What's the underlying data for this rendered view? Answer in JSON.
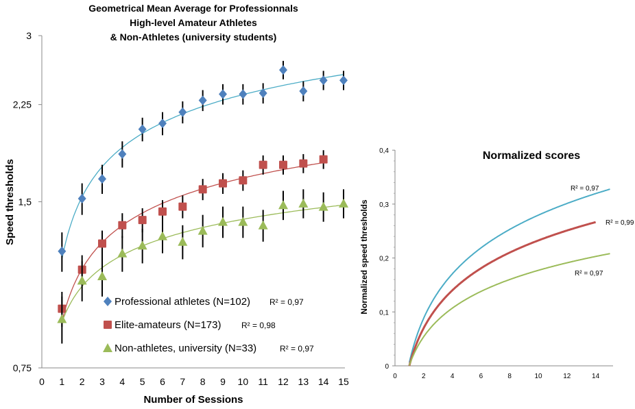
{
  "chart_data": [
    {
      "type": "scatter",
      "title": [
        "Geometrical Mean Average for Professionnals",
        "High-level Amateur Athletes",
        "& Non-Athletes (university students)"
      ],
      "xlabel": "Number of Sessions",
      "ylabel": "Speed thresholds",
      "xlim": [
        0,
        15
      ],
      "ylim": [
        0.75,
        3
      ],
      "yscale": "log",
      "x_ticks": [
        "0",
        "1",
        "2",
        "3",
        "4",
        "5",
        "6",
        "7",
        "8",
        "9",
        "10",
        "11",
        "12",
        "13",
        "14",
        "15"
      ],
      "y_ticks": [
        "3",
        "2,25",
        "1,5",
        "0,75"
      ],
      "y_tick_values": [
        3,
        2.25,
        1.5,
        0.75
      ],
      "legend_position": "bottom-left",
      "trendline": "logarithmic",
      "series": [
        {
          "name": "Professional athletes (N=102)",
          "r2": "R² = 0,97",
          "color": "#4f81bd",
          "line_color": "#4bacc6",
          "marker": "diamond",
          "x": [
            1,
            2,
            3,
            4,
            5,
            6,
            7,
            8,
            9,
            10,
            11,
            12,
            13,
            14,
            15
          ],
          "y": [
            1.22,
            1.52,
            1.65,
            1.83,
            2.03,
            2.08,
            2.18,
            2.29,
            2.35,
            2.35,
            2.36,
            2.6,
            2.38,
            2.49,
            2.49
          ],
          "error": 0.1
        },
        {
          "name": "Elite-amateurs (N=173)",
          "r2": "R² = 0,98",
          "color": "#c0504d",
          "line_color": "#c0504d",
          "marker": "square",
          "x": [
            1,
            2,
            3,
            4,
            5,
            6,
            7,
            8,
            9,
            10,
            11,
            12,
            13,
            14
          ],
          "y": [
            0.96,
            1.13,
            1.26,
            1.36,
            1.39,
            1.44,
            1.47,
            1.58,
            1.62,
            1.64,
            1.75,
            1.75,
            1.76,
            1.79
          ],
          "error": 0.07
        },
        {
          "name": "Non-athletes, university (N=33)",
          "r2": "R² = 0,97",
          "color": "#9bbb59",
          "line_color": "#9bbb59",
          "marker": "triangle",
          "x": [
            1,
            2,
            3,
            4,
            5,
            6,
            7,
            8,
            9,
            10,
            11,
            12,
            13,
            14,
            15
          ],
          "y": [
            0.92,
            1.08,
            1.1,
            1.21,
            1.25,
            1.3,
            1.27,
            1.33,
            1.38,
            1.38,
            1.36,
            1.48,
            1.49,
            1.47,
            1.49
          ],
          "error": 0.09
        }
      ]
    },
    {
      "type": "line",
      "title": "Normalized scores",
      "xlabel": "",
      "ylabel": "Normalized speed thresholds",
      "xlim": [
        0,
        15
      ],
      "ylim": [
        0,
        0.4
      ],
      "x_ticks": [
        "0",
        "2",
        "4",
        "6",
        "8",
        "10",
        "12",
        "14"
      ],
      "y_ticks": [
        "0,4",
        "0,3",
        "0,2",
        "0,1",
        "0"
      ],
      "y_tick_values": [
        0.4,
        0.3,
        0.2,
        0.1,
        0
      ],
      "series": [
        {
          "r2": "R² = 0,97",
          "color": "#4bacc6",
          "x": [
            1,
            2,
            4,
            6,
            8,
            10,
            12,
            14,
            15
          ],
          "y": [
            0.005,
            0.09,
            0.168,
            0.22,
            0.253,
            0.28,
            0.303,
            0.32,
            0.325
          ]
        },
        {
          "r2": "R² = 0,99",
          "color": "#c0504d",
          "x": [
            1,
            2,
            4,
            6,
            8,
            10,
            12,
            14
          ],
          "y": [
            0,
            0.07,
            0.14,
            0.181,
            0.21,
            0.232,
            0.251,
            0.267
          ]
        },
        {
          "r2": "R² = 0,97",
          "color": "#9bbb59",
          "x": [
            1,
            2,
            4,
            6,
            8,
            10,
            12,
            14,
            15
          ],
          "y": [
            0,
            0.055,
            0.107,
            0.138,
            0.16,
            0.177,
            0.191,
            0.203,
            0.208
          ]
        }
      ]
    }
  ]
}
